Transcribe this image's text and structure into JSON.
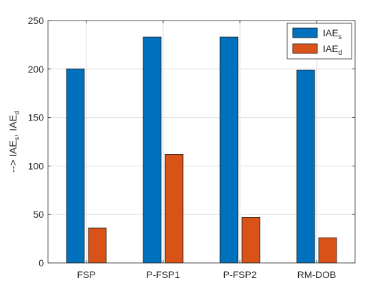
{
  "chart_data": {
    "type": "bar",
    "categories": [
      "FSP",
      "P-FSP1",
      "P-FSP2",
      "RM-DOB"
    ],
    "series": [
      {
        "name": "IAE_s",
        "label_main": "IAE",
        "label_sub": "s",
        "color": "#0072BD",
        "values": [
          200,
          233,
          233,
          199
        ]
      },
      {
        "name": "IAE_d",
        "label_main": "IAE",
        "label_sub": "d",
        "color": "#D95319",
        "values": [
          36,
          112,
          47,
          26
        ]
      }
    ],
    "ylabel": {
      "parts": [
        {
          "text": "--> IAE",
          "sub": false
        },
        {
          "text": "s",
          "sub": true
        },
        {
          "text": ", IAE",
          "sub": false
        },
        {
          "text": "d",
          "sub": true
        }
      ]
    },
    "ylim": [
      0,
      250
    ],
    "yticks": [
      0,
      50,
      100,
      150,
      200,
      250
    ],
    "grid": true,
    "legend_position": "top-right"
  }
}
